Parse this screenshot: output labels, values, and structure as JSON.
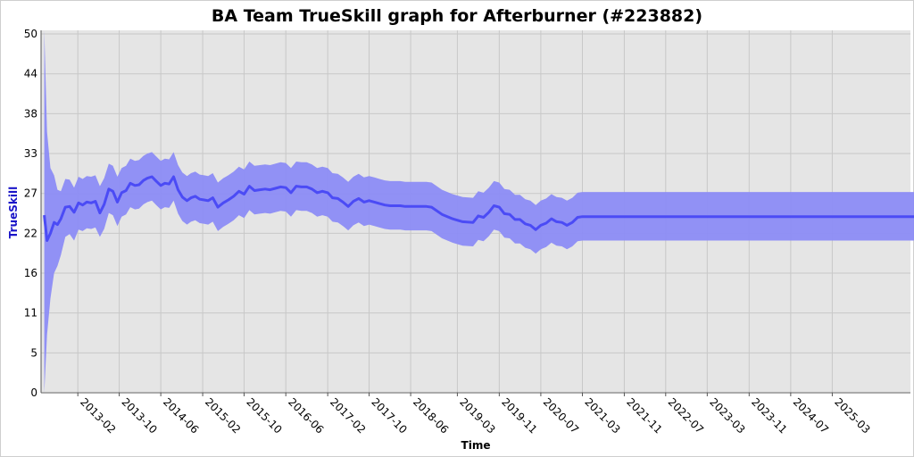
{
  "chart_data": {
    "type": "line",
    "title": "BA Team TrueSkill graph for Afterburner (#223882)",
    "xlabel": "Time",
    "ylabel": "TrueSkill",
    "x_ticks": [
      "2013-02",
      "2013-10",
      "2014-06",
      "2015-02",
      "2015-10",
      "2016-06",
      "2017-02",
      "2017-10",
      "2018-06",
      "2019-03",
      "2019-11",
      "2020-07",
      "2021-03",
      "2021-11",
      "2022-07",
      "2023-03",
      "2023-11",
      "2024-07",
      "2025-03"
    ],
    "y_ticks": [
      "0",
      "5",
      "11",
      "16",
      "22",
      "27",
      "33",
      "38",
      "44",
      "50"
    ],
    "y_tick_values": [
      0,
      5.5,
      11,
      16.5,
      22,
      27.5,
      33,
      38.5,
      44,
      49.5
    ],
    "xlim": [
      "2012-07",
      "2026-06"
    ],
    "ylim": [
      0,
      50
    ],
    "grid": true,
    "colors": {
      "line": "#4b4bf5",
      "band": "#8c8cf5",
      "plot_bg": "#e5e5e5",
      "grid": "#c8c8c8"
    },
    "series": [
      {
        "x": [
          "2012-07-20",
          "2012-08-05",
          "2012-08-25",
          "2012-09-15",
          "2012-10-05",
          "2012-10-25",
          "2012-11-20",
          "2012-12-15",
          "2013-01-10",
          "2013-02-05",
          "2013-03-01",
          "2013-03-25",
          "2013-04-20",
          "2013-05-15",
          "2013-06-10",
          "2013-07-05",
          "2013-08-01",
          "2013-08-25",
          "2013-09-20",
          "2013-10-15",
          "2013-11-10",
          "2013-12-05",
          "2014-01-01",
          "2014-01-25",
          "2014-02-20",
          "2014-03-15",
          "2014-04-10",
          "2014-05-05",
          "2014-06-01",
          "2014-06-25",
          "2014-07-20",
          "2014-08-15",
          "2014-09-10",
          "2014-10-05",
          "2014-11-01",
          "2014-11-25",
          "2014-12-20",
          "2015-01-15",
          "2015-02-10",
          "2015-03-05",
          "2015-04-01",
          "2015-05-01",
          "2015-06-01",
          "2015-07-01",
          "2015-08-01",
          "2015-09-01",
          "2015-10-01",
          "2015-11-01",
          "2015-12-01",
          "2016-01-01",
          "2016-02-01",
          "2016-03-01",
          "2016-04-01",
          "2016-05-01",
          "2016-06-01",
          "2016-07-01",
          "2016-08-01",
          "2016-09-01",
          "2016-10-01",
          "2016-11-01",
          "2016-12-01",
          "2017-01-01",
          "2017-02-01",
          "2017-03-01",
          "2017-04-01",
          "2017-05-01",
          "2017-06-01",
          "2017-07-01",
          "2017-08-01",
          "2017-09-01",
          "2017-10-01",
          "2017-11-01",
          "2017-12-01",
          "2018-01-01",
          "2018-02-01",
          "2018-03-01",
          "2018-04-01",
          "2018-05-01",
          "2018-06-01",
          "2018-07-01",
          "2018-08-01",
          "2018-09-01",
          "2018-10-01",
          "2018-12-01",
          "2019-02-01",
          "2019-04-01",
          "2019-06-01",
          "2019-07-01",
          "2019-08-01",
          "2019-09-01",
          "2019-10-01",
          "2019-11-01",
          "2019-12-01",
          "2020-01-01",
          "2020-02-01",
          "2020-03-01",
          "2020-04-01",
          "2020-05-01",
          "2020-06-01",
          "2020-07-01",
          "2020-08-01",
          "2020-09-01",
          "2020-10-01",
          "2020-11-01",
          "2020-12-01",
          "2021-01-01",
          "2021-02-01",
          "2021-03-01",
          "2021-04-01",
          "2021-05-01",
          "2021-06-01",
          "2021-07-01",
          "2021-08-01",
          "2026-06-30"
        ],
        "mean": [
          24.5,
          21,
          22,
          23.5,
          23.2,
          24,
          25.6,
          25.7,
          24.9,
          26.2,
          25.9,
          26.3,
          26.2,
          26.4,
          24.8,
          26,
          28.1,
          27.8,
          26.3,
          27.6,
          27.9,
          28.9,
          28.6,
          28.7,
          29.3,
          29.6,
          29.8,
          29.2,
          28.6,
          28.9,
          28.8,
          29.8,
          28,
          27,
          26.5,
          26.9,
          27.1,
          26.7,
          26.6,
          26.5,
          26.9,
          25.6,
          26.2,
          26.6,
          27.1,
          27.8,
          27.4,
          28.5,
          27.9,
          28,
          28.1,
          28,
          28.2,
          28.4,
          28.3,
          27.6,
          28.5,
          28.4,
          28.4,
          28.1,
          27.6,
          27.8,
          27.6,
          26.9,
          26.8,
          26.3,
          25.7,
          26.4,
          26.8,
          26.3,
          26.5,
          26.3,
          26.1,
          25.9,
          25.8,
          25.8,
          25.8,
          25.7,
          25.7,
          25.7,
          25.7,
          25.7,
          25.6,
          24.6,
          24,
          23.6,
          23.5,
          24.4,
          24.2,
          24.9,
          25.8,
          25.6,
          24.7,
          24.6,
          23.9,
          23.9,
          23.3,
          23.1,
          22.5,
          23.1,
          23.4,
          24,
          23.6,
          23.5,
          23.1,
          23.5,
          24.2,
          24.3,
          24.3,
          24.3,
          24.3,
          24.3,
          24.3,
          24.3
        ],
        "upper": [
          50,
          36,
          31,
          30,
          28,
          27.8,
          29.5,
          29.4,
          28.3,
          29.8,
          29.5,
          29.9,
          29.8,
          30,
          28.5,
          29.6,
          31.6,
          31.3,
          29.8,
          31,
          31.3,
          32.3,
          32,
          32.1,
          32.7,
          33,
          33.2,
          32.6,
          32,
          32.3,
          32.2,
          33.2,
          31.4,
          30.4,
          29.9,
          30.3,
          30.5,
          30.1,
          30,
          29.9,
          30.3,
          29,
          29.6,
          30,
          30.5,
          31.2,
          30.8,
          31.9,
          31.3,
          31.4,
          31.5,
          31.4,
          31.6,
          31.8,
          31.7,
          31,
          31.9,
          31.8,
          31.8,
          31.5,
          31,
          31.2,
          31,
          30.3,
          30.2,
          29.7,
          29.1,
          29.8,
          30.2,
          29.7,
          29.9,
          29.7,
          29.5,
          29.3,
          29.2,
          29.2,
          29.2,
          29.1,
          29.1,
          29.1,
          29.1,
          29.1,
          29,
          28,
          27.4,
          27,
          26.9,
          27.8,
          27.6,
          28.3,
          29.2,
          29,
          28.1,
          28,
          27.3,
          27.3,
          26.7,
          26.5,
          25.9,
          26.5,
          26.8,
          27.4,
          27,
          26.9,
          26.5,
          26.9,
          27.6,
          27.7,
          27.7,
          27.7,
          27.7,
          27.7,
          27.7,
          27.7
        ],
        "lower": [
          0,
          8,
          13,
          16.5,
          17.5,
          19,
          21.5,
          21.9,
          21,
          22.5,
          22.3,
          22.7,
          22.6,
          22.8,
          21.5,
          22.6,
          24.8,
          24.5,
          23,
          24.3,
          24.6,
          25.6,
          25.3,
          25.4,
          26,
          26.3,
          26.5,
          25.9,
          25.3,
          25.6,
          25.5,
          26.5,
          24.7,
          23.7,
          23.2,
          23.6,
          23.8,
          23.4,
          23.3,
          23.2,
          23.6,
          22.3,
          22.9,
          23.3,
          23.8,
          24.5,
          24.1,
          25.2,
          24.6,
          24.7,
          24.8,
          24.7,
          24.9,
          25.1,
          25,
          24.3,
          25.2,
          25.1,
          25.1,
          24.8,
          24.3,
          24.5,
          24.3,
          23.6,
          23.5,
          23,
          22.4,
          23.1,
          23.5,
          23,
          23.2,
          23,
          22.8,
          22.6,
          22.5,
          22.5,
          22.5,
          22.4,
          22.4,
          22.4,
          22.4,
          22.4,
          22.3,
          21.3,
          20.7,
          20.3,
          20.2,
          21.1,
          20.9,
          21.6,
          22.5,
          22.3,
          21.4,
          21.3,
          20.6,
          20.6,
          20,
          19.8,
          19.2,
          19.8,
          20.1,
          20.7,
          20.3,
          20.2,
          19.8,
          20.2,
          20.9,
          21,
          21,
          21,
          21,
          21,
          21,
          21
        ]
      }
    ]
  }
}
